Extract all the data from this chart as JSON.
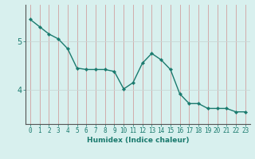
{
  "x": [
    0,
    1,
    2,
    3,
    4,
    5,
    6,
    7,
    8,
    9,
    10,
    11,
    12,
    13,
    14,
    15,
    16,
    17,
    18,
    19,
    20,
    21,
    22,
    23
  ],
  "y": [
    5.45,
    5.3,
    5.15,
    5.05,
    4.85,
    4.45,
    4.42,
    4.42,
    4.42,
    4.38,
    4.02,
    4.15,
    4.55,
    4.75,
    4.62,
    4.42,
    3.92,
    3.72,
    3.72,
    3.62,
    3.62,
    3.62,
    3.55,
    3.55
  ],
  "line_color": "#1a7a6e",
  "marker": "D",
  "marker_size": 2.2,
  "bg_color": "#d8f0ee",
  "grid_color": "#c0c0c0",
  "xlabel": "Humidex (Indice chaleur)",
  "yticks": [
    4,
    5
  ],
  "xlim": [
    -0.5,
    23.5
  ],
  "ylim": [
    3.3,
    5.75
  ],
  "font_color": "#1a7a6e",
  "xlabel_fontsize": 6.5,
  "tick_fontsize": 5.5
}
